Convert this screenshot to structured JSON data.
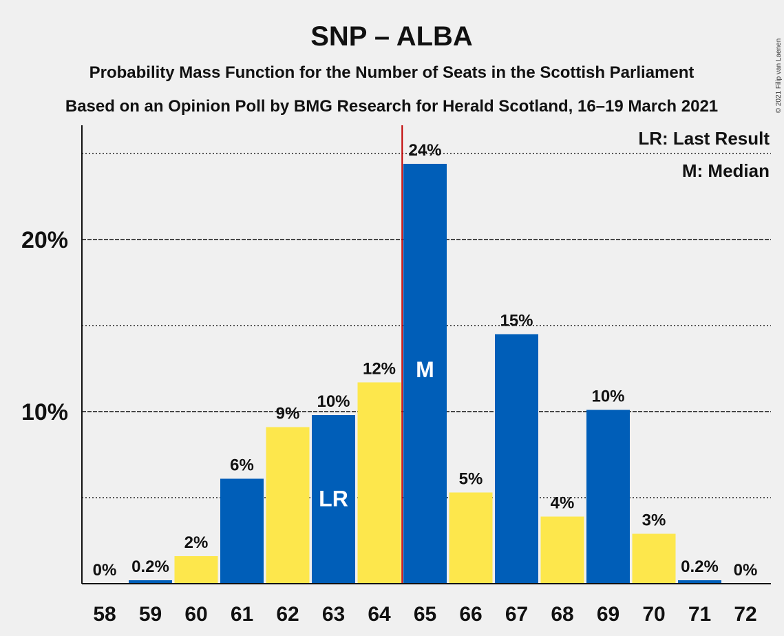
{
  "chart_data": {
    "type": "bar",
    "title": "SNP – ALBA",
    "subtitle_1": "Probability Mass Function for the Number of Seats in the Scottish Parliament",
    "subtitle_2": "Based on an Opinion Poll by BMG Research for Herald Scotland, 16–19 March 2021",
    "copyright": "© 2021 Filip van Laenen",
    "categories": [
      "58",
      "59",
      "60",
      "61",
      "62",
      "63",
      "64",
      "65",
      "66",
      "67",
      "68",
      "69",
      "70",
      "71",
      "72"
    ],
    "values": [
      0,
      0.2,
      1.6,
      6.1,
      9.1,
      9.8,
      11.7,
      24.4,
      5.3,
      14.5,
      3.9,
      10.1,
      2.9,
      0.2,
      0
    ],
    "data_labels": [
      "0%",
      "0.2%",
      "2%",
      "6%",
      "9%",
      "10%",
      "12%",
      "24%",
      "5%",
      "15%",
      "4%",
      "10%",
      "3%",
      "0.2%",
      "0%"
    ],
    "bar_colors": [
      "#005EB8",
      "#005EB8",
      "#FDE74C",
      "#005EB8",
      "#FDE74C",
      "#005EB8",
      "#FDE74C",
      "#005EB8",
      "#FDE74C",
      "#005EB8",
      "#FDE74C",
      "#005EB8",
      "#FDE74C",
      "#005EB8",
      "#005EB8"
    ],
    "bar_markers": {
      "63": "LR",
      "65": "M"
    },
    "median_seat": "65",
    "median_line_color": "#C00000",
    "ylim": [
      0,
      26.5
    ],
    "yticks": [
      {
        "value": 10,
        "label": "10%"
      },
      {
        "value": 20,
        "label": "20%"
      }
    ],
    "minor_grid": [
      5,
      15,
      25
    ],
    "legend": {
      "placement": "top-right",
      "items": [
        "LR: Last Result",
        "M: Median"
      ]
    }
  }
}
